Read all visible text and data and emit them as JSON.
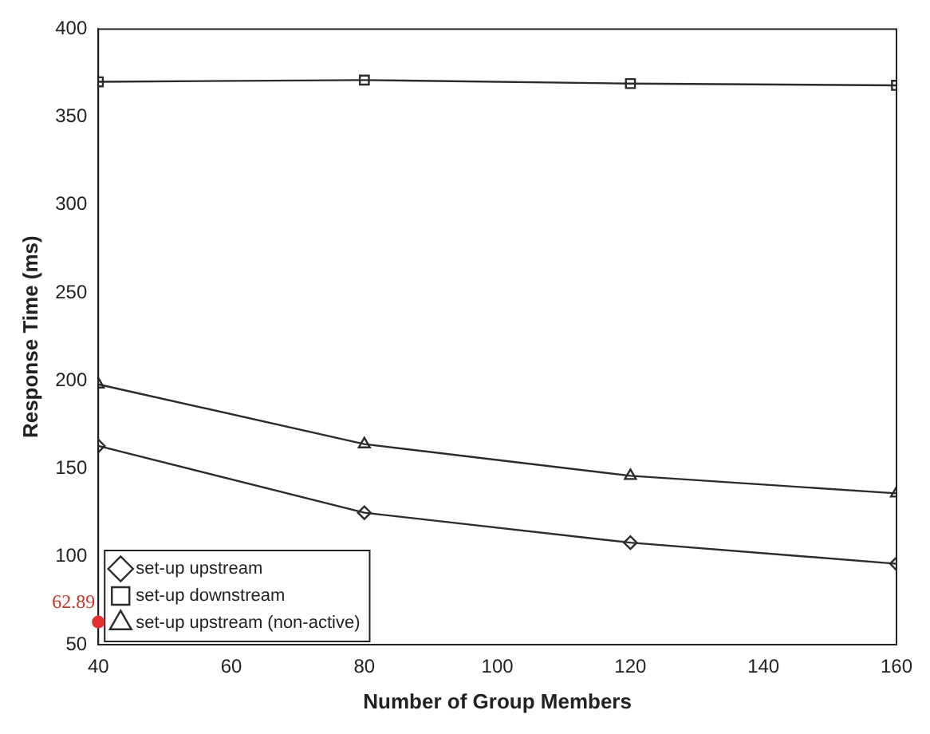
{
  "chart_data": {
    "type": "line",
    "xlabel": "Number of Group Members",
    "ylabel": "Response Time (ms)",
    "x": [
      40,
      80,
      120,
      160
    ],
    "series": [
      {
        "name": "set-up upstream",
        "color": "#2b2b2b",
        "marker": "diamond",
        "values": [
          163,
          125,
          108,
          96
        ]
      },
      {
        "name": "set-up downstream",
        "color": "#2b2b2b",
        "marker": "square",
        "values": [
          370,
          371,
          369,
          368
        ]
      },
      {
        "name": "set-up upstream (non-active)",
        "color": "#2b2b2b",
        "marker": "triangle",
        "values": [
          198,
          164,
          146,
          136
        ]
      }
    ],
    "xlim": [
      40,
      160
    ],
    "xticks": [
      40,
      60,
      80,
      100,
      120,
      140,
      160
    ],
    "ylim": [
      50,
      400
    ],
    "yticks": [
      50,
      100,
      150,
      200,
      250,
      300,
      350,
      400
    ],
    "grid": false,
    "legend": "bottom left",
    "annotations": [
      {
        "text": "62.89",
        "x": 40,
        "y": 62.89
      }
    ]
  }
}
